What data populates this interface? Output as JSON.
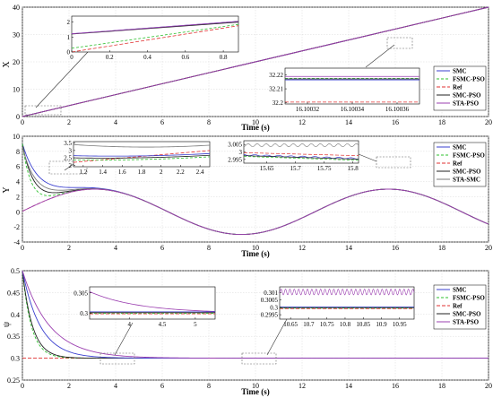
{
  "colors": {
    "SMC": "#3a3fcf",
    "FSMC-PSO": "#2ec02e",
    "Ref": "#e03030",
    "SMC-PSO": "#202020",
    "STA-PSO": "#9b3fb0",
    "STA-SMC": "#7a7a7a"
  },
  "chart_data": [
    {
      "type": "line",
      "id": "x",
      "ylabel": "X",
      "xlabel": "Time (s)",
      "xlim": [
        0,
        20
      ],
      "ylim": [
        0,
        40
      ],
      "xticks": [
        "0",
        "2",
        "4",
        "6",
        "8",
        "10",
        "12",
        "14",
        "16",
        "18",
        "20"
      ],
      "yticks": [
        "0",
        "10",
        "20",
        "30",
        "40"
      ],
      "legend": [
        "SMC",
        "FSMC-PSO",
        "Ref",
        "SMC-PSO",
        "STA-PSO"
      ],
      "series": [
        {
          "name": "SMC",
          "x": [
            0,
            20
          ],
          "y": [
            0,
            40
          ]
        },
        {
          "name": "FSMC-PSO",
          "x": [
            0,
            20
          ],
          "y": [
            0,
            40
          ]
        },
        {
          "name": "Ref",
          "x": [
            0,
            20
          ],
          "y": [
            0,
            40
          ]
        },
        {
          "name": "SMC-PSO",
          "x": [
            0,
            20
          ],
          "y": [
            0,
            40
          ]
        },
        {
          "name": "STA-PSO",
          "x": [
            0,
            20
          ],
          "y": [
            0,
            40
          ]
        }
      ],
      "insets": [
        {
          "xticks": [
            "0",
            "0.2",
            "0.4",
            "0.6",
            "0.8"
          ],
          "yticks": [
            "0",
            "1",
            "2"
          ],
          "xlim": [
            0,
            0.88
          ],
          "ylim": [
            0,
            2.4
          ],
          "series": [
            {
              "name": "SMC",
              "x": [
                0,
                0.88
              ],
              "y": [
                1.22,
                2.05
              ]
            },
            {
              "name": "FSMC-PSO",
              "x": [
                0,
                0.88
              ],
              "y": [
                0.25,
                1.85
              ]
            },
            {
              "name": "Ref",
              "x": [
                0,
                0.88
              ],
              "y": [
                0.0,
                1.76
              ]
            },
            {
              "name": "SMC-PSO",
              "x": [
                0,
                0.88
              ],
              "y": [
                1.2,
                2.0
              ]
            },
            {
              "name": "STA-PSO",
              "x": [
                0,
                0.88
              ],
              "y": [
                1.22,
                2.05
              ]
            }
          ]
        },
        {
          "xticks": [
            "16.10032",
            "16.10034",
            "16.10036"
          ],
          "yticks": [
            "32.2",
            "32.21",
            "32.22"
          ],
          "xlim": [
            16.10031,
            16.10037
          ],
          "ylim": [
            32.199,
            32.225
          ],
          "series": [
            {
              "name": "SMC",
              "x": [
                16.10031,
                16.10037
              ],
              "y": [
                32.2165,
                32.2165
              ]
            },
            {
              "name": "FSMC-PSO",
              "x": [
                16.10031,
                16.10037
              ],
              "y": [
                32.2175,
                32.2175
              ]
            },
            {
              "name": "Ref",
              "x": [
                16.10031,
                16.10037
              ],
              "y": [
                32.2004,
                32.2004
              ]
            },
            {
              "name": "SMC-PSO",
              "x": [
                16.10031,
                16.10037
              ],
              "y": [
                32.2172,
                32.2172
              ]
            },
            {
              "name": "STA-PSO",
              "x": [
                16.10031,
                16.10037
              ],
              "y": [
                32.219,
                32.219
              ]
            }
          ]
        }
      ]
    },
    {
      "type": "line",
      "id": "y",
      "ylabel": "Y",
      "xlabel": "Time (s)",
      "xlim": [
        0,
        20
      ],
      "ylim": [
        -4,
        10
      ],
      "xticks": [
        "0",
        "2",
        "4",
        "6",
        "8",
        "10",
        "12",
        "14",
        "16",
        "18",
        "20"
      ],
      "yticks": [
        "-4",
        "-2",
        "0",
        "2",
        "4",
        "6",
        "8",
        "10"
      ],
      "legend": [
        "SMC",
        "FSMC-PSO",
        "Ref",
        "SMC-PSO",
        "STA-SMC"
      ],
      "insets": [
        {
          "xticks": [
            "1.2",
            "1.4",
            "1.6",
            "1.8",
            "2",
            "2.2",
            "2.4"
          ],
          "yticks": [
            "2",
            "2.5",
            "3",
            "3.5"
          ],
          "xlim": [
            1.1,
            2.5
          ],
          "ylim": [
            1.9,
            3.6
          ]
        },
        {
          "xticks": [
            "15.65",
            "15.7",
            "15.75",
            "15.8"
          ],
          "yticks": [
            "2.995",
            "3",
            "3.005"
          ],
          "xlim": [
            15.61,
            15.81
          ],
          "ylim": [
            2.9925,
            3.0075
          ]
        }
      ]
    },
    {
      "type": "line",
      "id": "psi",
      "ylabel": "ψ",
      "xlabel": "Time (s)",
      "xlim": [
        0,
        20
      ],
      "ylim": [
        0.25,
        0.5
      ],
      "xticks": [
        "0",
        "2",
        "4",
        "6",
        "8",
        "10",
        "12",
        "14",
        "16",
        "18",
        "20"
      ],
      "yticks": [
        "0.25",
        "0.3",
        "0.35",
        "0.4",
        "0.45",
        "0.5"
      ],
      "legend": [
        "SMC",
        "FSMC-PSO",
        "Ref",
        "SMC-PSO",
        "STA-PSO"
      ],
      "insets": [
        {
          "xticks": [
            "4",
            "4.5",
            "5"
          ],
          "yticks": [
            "0.3",
            "0.305"
          ],
          "xlim": [
            3.4,
            5.3
          ],
          "ylim": [
            0.2985,
            0.3065
          ]
        },
        {
          "xticks": [
            "10.65",
            "10.7",
            "10.75",
            "10.8",
            "10.85",
            "10.9",
            "10.95"
          ],
          "yticks": [
            "0.2995",
            "0.3",
            "0.3005",
            "0.301"
          ],
          "xlim": [
            10.62,
            10.99
          ],
          "ylim": [
            0.2992,
            0.3014
          ]
        }
      ]
    }
  ]
}
